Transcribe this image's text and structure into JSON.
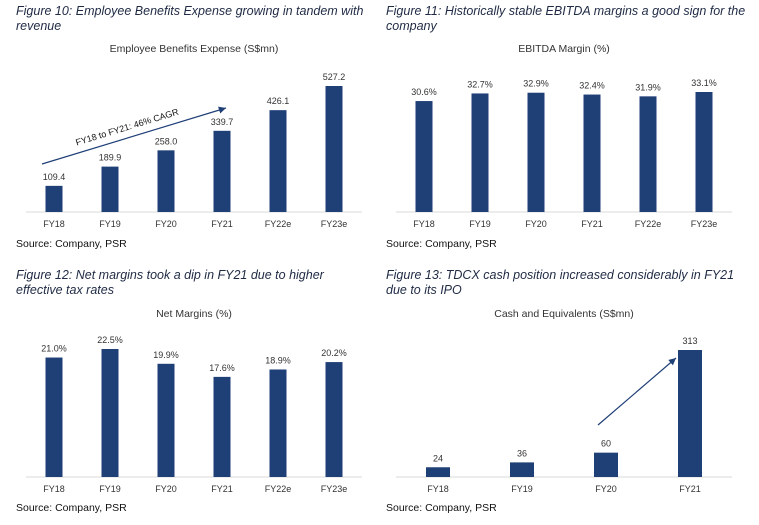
{
  "colors": {
    "bar": "#1f3f77",
    "axis": "#d9d9d9",
    "label": "#333333",
    "caption": "#1f2a44"
  },
  "chart_data": [
    {
      "type": "bar",
      "figure_caption": "Figure 10: Employee Benefits Expense growing in tandem with revenue",
      "title": "Employee Benefits Expense (S$mn)",
      "categories": [
        "FY18",
        "FY19",
        "FY20",
        "FY21",
        "FY22e",
        "FY23e"
      ],
      "values": [
        109.4,
        189.9,
        258.0,
        339.7,
        426.1,
        527.2
      ],
      "value_labels": [
        "109.4",
        "189.9",
        "258.0",
        "339.7",
        "426.1",
        "527.2"
      ],
      "annotation": "FY18 to FY21: 46% CAGR",
      "ylim": [
        0,
        600
      ],
      "source": "Source: Company, PSR"
    },
    {
      "type": "bar",
      "figure_caption": "Figure 11: Historically stable EBITDA margins a good sign for the company",
      "title": "EBITDA Margin (%)",
      "categories": [
        "FY18",
        "FY19",
        "FY20",
        "FY21",
        "FY22e",
        "FY23e"
      ],
      "values": [
        30.6,
        32.7,
        32.9,
        32.4,
        31.9,
        33.1
      ],
      "value_labels": [
        "30.6%",
        "32.7%",
        "32.9%",
        "32.4%",
        "31.9%",
        "33.1%"
      ],
      "ylim": [
        0,
        40
      ],
      "source": "Source: Company, PSR"
    },
    {
      "type": "bar",
      "figure_caption": "Figure 12: Net margins took a dip in FY21 due to higher effective tax rates",
      "title": "Net Margins (%)",
      "categories": [
        "FY18",
        "FY19",
        "FY20",
        "FY21",
        "FY22e",
        "FY23e"
      ],
      "values": [
        21.0,
        22.5,
        19.9,
        17.6,
        18.9,
        20.2
      ],
      "value_labels": [
        "21.0%",
        "22.5%",
        "19.9%",
        "17.6%",
        "18.9%",
        "20.2%"
      ],
      "ylim": [
        0,
        25
      ],
      "source": "Source: Company, PSR"
    },
    {
      "type": "bar",
      "figure_caption": "Figure 13: TDCX cash position increased considerably in FY21 due to its IPO",
      "title": "Cash and Equivalents (S$mn)",
      "categories": [
        "FY18",
        "FY19",
        "FY20",
        "FY21"
      ],
      "values": [
        24,
        36,
        60,
        313
      ],
      "value_labels": [
        "24",
        "36",
        "60",
        "313"
      ],
      "ylim": [
        0,
        360
      ],
      "source": "Source: Company, PSR"
    }
  ]
}
